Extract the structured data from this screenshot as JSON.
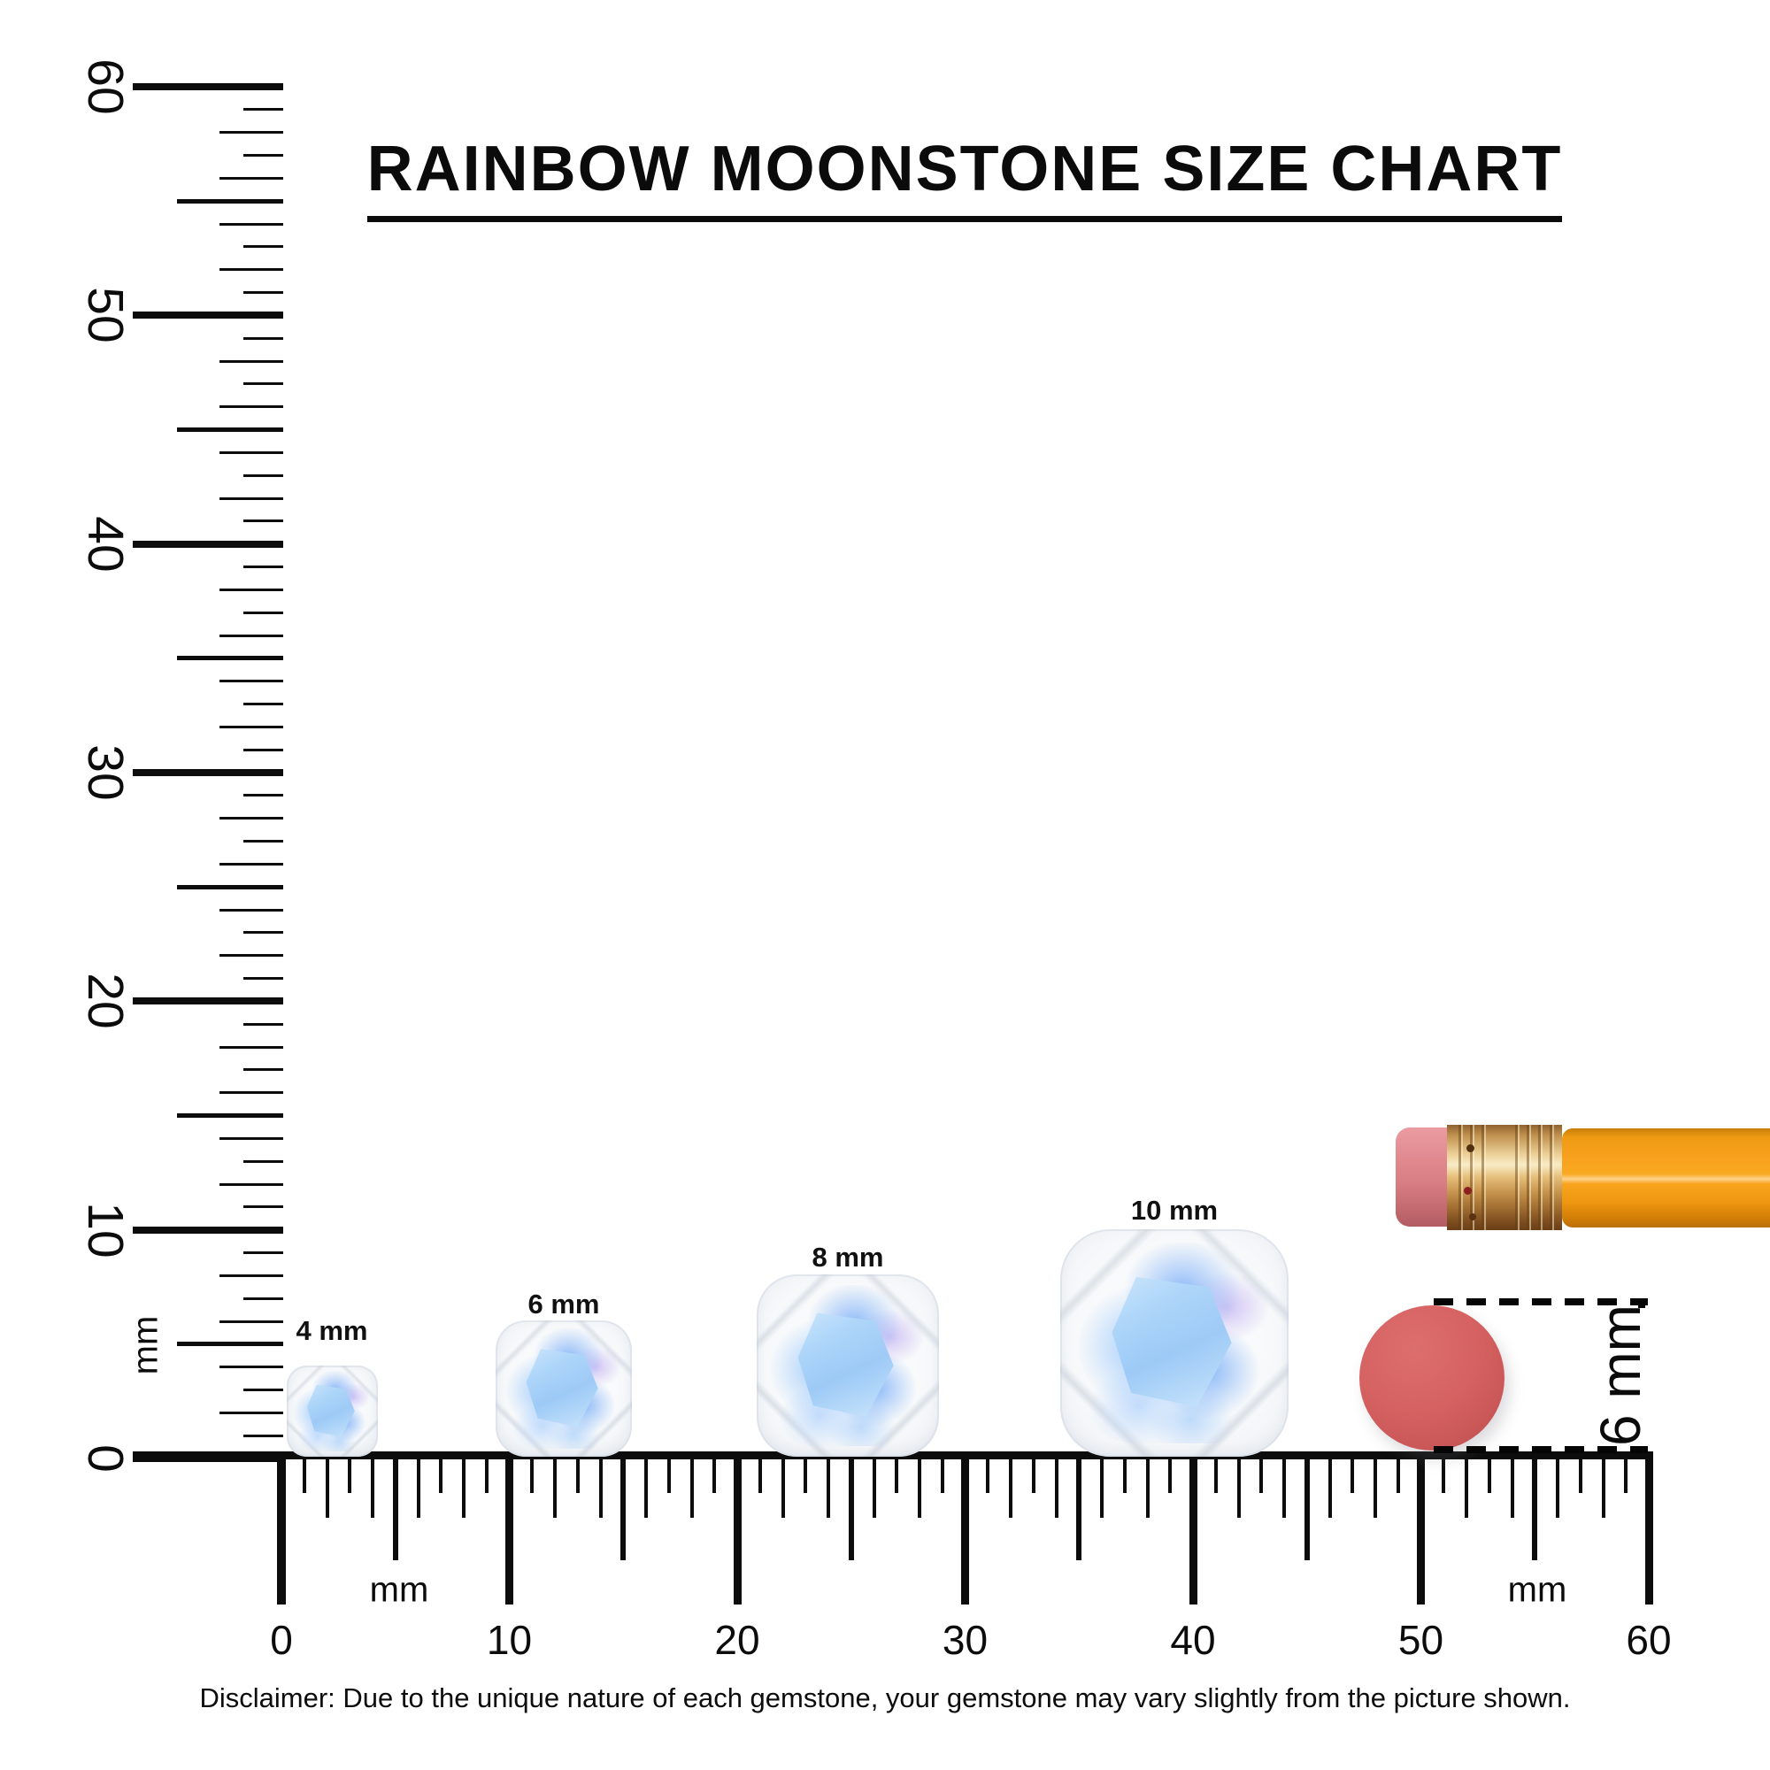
{
  "title": {
    "text": "RAINBOW MOONSTONE SIZE CHART"
  },
  "vertical_ruler": {
    "unit_label": "mm",
    "min_mm": 0,
    "max_mm": 60,
    "major_labels": [
      "0",
      "10",
      "20",
      "30",
      "40",
      "50",
      "60"
    ]
  },
  "horizontal_ruler": {
    "unit_label_left": "mm",
    "unit_label_right": "mm",
    "min_mm": 0,
    "max_mm": 60,
    "major_labels": [
      "0",
      "10",
      "20",
      "30",
      "40",
      "50",
      "60"
    ]
  },
  "gems": [
    {
      "label": "4 mm",
      "size_mm": 4
    },
    {
      "label": "6 mm",
      "size_mm": 6
    },
    {
      "label": "8 mm",
      "size_mm": 8
    },
    {
      "label": "10 mm",
      "size_mm": 10
    }
  ],
  "eraser_measure": {
    "label": "6 mm"
  },
  "disclaimer": "Disclaimer: Due to the unique nature of each gemstone, your gemstone may vary slightly from the picture shown.",
  "colors": {
    "ruler_ink": "#0c0c0c",
    "pencil_body": "#f8a01d",
    "pencil_ferrule": "#e5bd79",
    "pencil_eraser_pink": "#d87e84",
    "eraser_circle": "#d66262",
    "gem_blue": "#9bc9f6",
    "gem_body": "#f2f4f7"
  }
}
